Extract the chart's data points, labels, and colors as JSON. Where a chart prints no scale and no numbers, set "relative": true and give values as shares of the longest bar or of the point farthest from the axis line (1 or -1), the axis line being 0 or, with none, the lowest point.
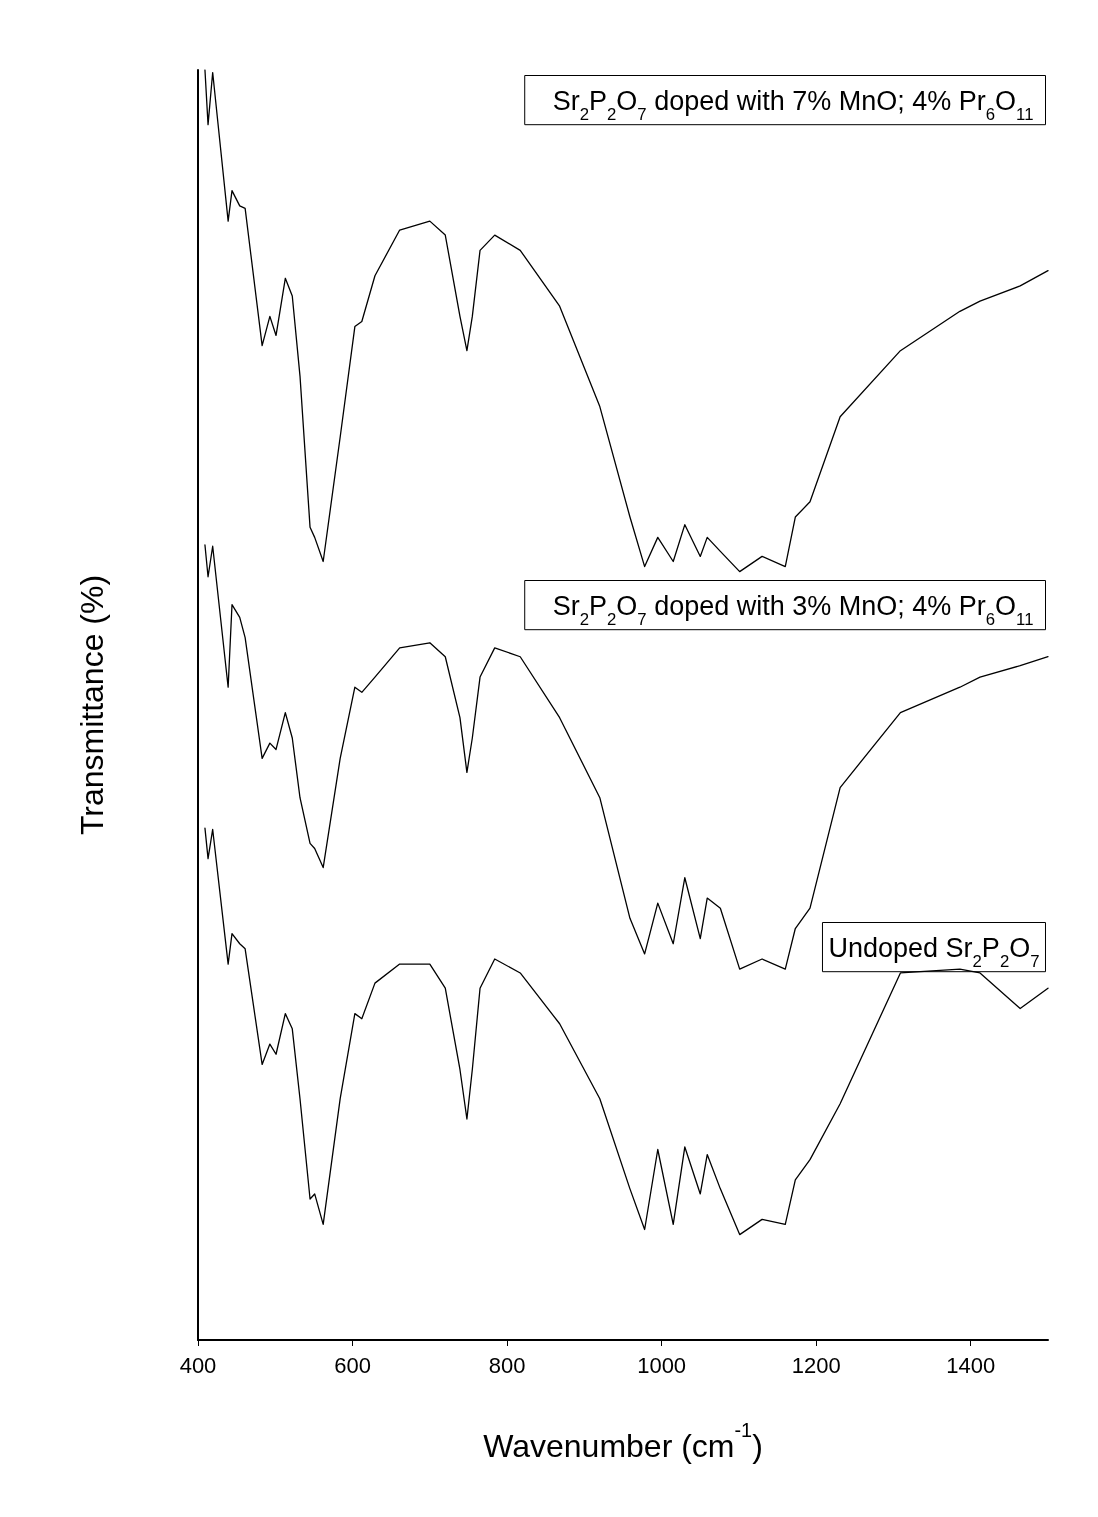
{
  "chart_data": {
    "type": "line",
    "relative": true,
    "xlabel": "Wavenumber (cm$^{-1}$)",
    "ylabel": "Transmittance (%)",
    "xlim": [
      400,
      1500
    ],
    "xticks": [
      400,
      600,
      800,
      1000,
      1200,
      1400
    ],
    "grid": false,
    "legend": false,
    "marker": "none",
    "line_style": "solid",
    "x": [
      409,
      413,
      419,
      439,
      444,
      454,
      461,
      483,
      493,
      501,
      513,
      522,
      532,
      545,
      551,
      562,
      584,
      603,
      612,
      629,
      661,
      700,
      720,
      739,
      748,
      755,
      765,
      784,
      817,
      868,
      920,
      959,
      978,
      995,
      1015,
      1030,
      1050,
      1059,
      1076,
      1101,
      1130,
      1160,
      1173,
      1192,
      1231,
      1309,
      1386,
      1412,
      1464,
      1500
    ],
    "series": [
      {
        "name": "Sr$_{2}$P$_{2}$O$_{7}$ doped with 7% MnO; 4% Pr$_{6}$O$_{11}$",
        "color": "#000000",
        "values": [
          1.0,
          0.957,
          0.998,
          0.881,
          0.905,
          0.893,
          0.891,
          0.783,
          0.806,
          0.791,
          0.836,
          0.822,
          0.759,
          0.64,
          0.632,
          0.613,
          0.711,
          0.798,
          0.802,
          0.838,
          0.874,
          0.881,
          0.87,
          0.806,
          0.779,
          0.806,
          0.858,
          0.87,
          0.858,
          0.814,
          0.735,
          0.648,
          0.609,
          0.632,
          0.613,
          0.642,
          0.617,
          0.632,
          0.621,
          0.605,
          0.617,
          0.609,
          0.648,
          0.66,
          0.727,
          0.779,
          0.81,
          0.818,
          0.83,
          0.842
        ]
      },
      {
        "name": "Sr$_{2}$P$_{2}$O$_{7}$ doped with 3% MnO; 4% Pr$_{6}$O$_{11}$",
        "color": "#000000",
        "values": [
          0.626,
          0.601,
          0.625,
          0.514,
          0.579,
          0.569,
          0.553,
          0.458,
          0.47,
          0.465,
          0.494,
          0.474,
          0.427,
          0.391,
          0.387,
          0.372,
          0.458,
          0.514,
          0.51,
          0.522,
          0.545,
          0.549,
          0.538,
          0.49,
          0.447,
          0.474,
          0.522,
          0.545,
          0.538,
          0.49,
          0.427,
          0.332,
          0.304,
          0.344,
          0.312,
          0.364,
          0.316,
          0.348,
          0.34,
          0.292,
          0.3,
          0.292,
          0.324,
          0.34,
          0.435,
          0.494,
          0.514,
          0.522,
          0.531,
          0.538
        ]
      },
      {
        "name": "Undoped Sr$_{2}$P$_{2}$O$_{7}$",
        "color": "#000000",
        "values": [
          0.403,
          0.379,
          0.402,
          0.296,
          0.32,
          0.312,
          0.308,
          0.217,
          0.233,
          0.225,
          0.257,
          0.245,
          0.19,
          0.111,
          0.115,
          0.091,
          0.19,
          0.257,
          0.253,
          0.281,
          0.296,
          0.296,
          0.277,
          0.213,
          0.174,
          0.213,
          0.277,
          0.3,
          0.289,
          0.249,
          0.19,
          0.119,
          0.087,
          0.15,
          0.091,
          0.152,
          0.115,
          0.146,
          0.119,
          0.083,
          0.095,
          0.091,
          0.126,
          0.142,
          0.186,
          0.289,
          0.292,
          0.289,
          0.261,
          0.277
        ]
      }
    ]
  }
}
